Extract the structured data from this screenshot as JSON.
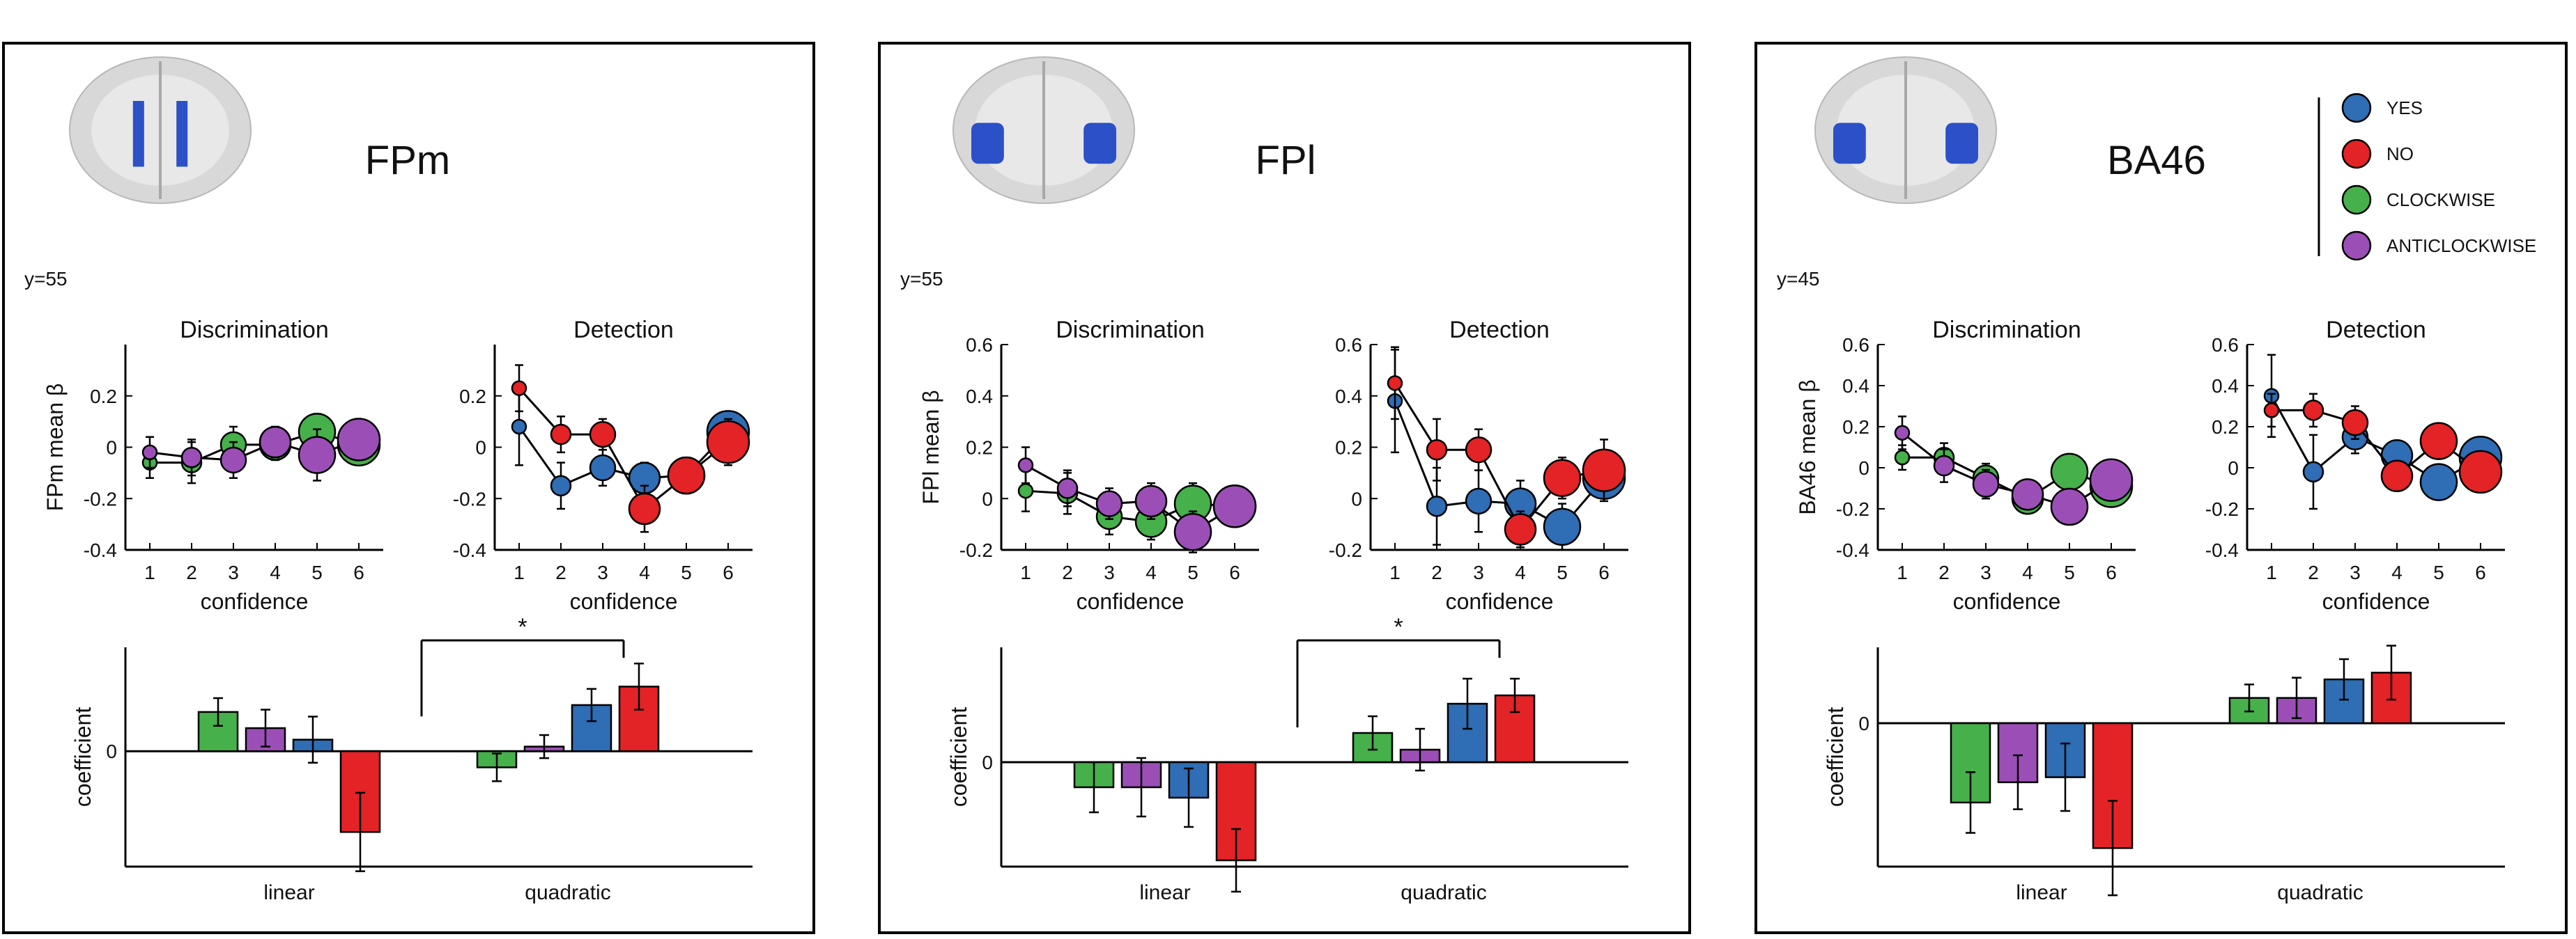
{
  "colors": {
    "yes": "#2f6db4",
    "no": "#e32326",
    "clockwise": "#46b04a",
    "anticlockwise": "#9b4fb6",
    "brain_roi": "#2b50c8"
  },
  "legend": [
    "YES",
    "NO",
    "CLOCKWISE",
    "ANTICLOCKWISE"
  ],
  "chart_data": [
    {
      "type": "line",
      "panel": "FPm",
      "title": "FPm",
      "coord": "y=55",
      "ylabel": "FPm mean β",
      "discrimination": {
        "title": "Discrimination",
        "xlabel": "confidence",
        "ylim": [
          -0.4,
          0.4
        ],
        "yticks": [
          "0.2",
          "0",
          "-0.2",
          "-0.4"
        ],
        "x": [
          1,
          2,
          3,
          4,
          5,
          6
        ],
        "series": [
          {
            "name": "CLOCKWISE",
            "values": [
              -0.06,
              -0.06,
              0.01,
              0.01,
              0.06,
              0.01
            ],
            "err": [
              0.06,
              0.08,
              0.07,
              0.06,
              0.07,
              0.06
            ]
          },
          {
            "name": "ANTICLOCKWISE",
            "values": [
              -0.02,
              -0.04,
              -0.05,
              0.02,
              -0.03,
              0.03
            ],
            "err": [
              0.06,
              0.07,
              0.07,
              0.06,
              0.1,
              0.07
            ]
          }
        ]
      },
      "detection": {
        "title": "Detection",
        "xlabel": "confidence",
        "ylim": [
          -0.4,
          0.4
        ],
        "yticks": [
          "0.2",
          "0",
          "-0.2",
          "-0.4"
        ],
        "x": [
          1,
          2,
          3,
          4,
          5,
          6
        ],
        "series": [
          {
            "name": "YES",
            "values": [
              0.08,
              -0.15,
              -0.08,
              -0.12,
              -0.11,
              0.06
            ],
            "err": [
              0.15,
              0.09,
              0.07,
              0.06,
              0.07,
              0.07
            ]
          },
          {
            "name": "NO",
            "values": [
              0.23,
              0.05,
              0.05,
              -0.24,
              -0.11,
              0.02
            ],
            "err": [
              0.09,
              0.07,
              0.06,
              0.09,
              0.07,
              0.09
            ]
          }
        ]
      },
      "coefficients": {
        "ylabel": "coefficient",
        "zero_tick": "0",
        "categories": [
          "linear",
          "quadratic"
        ],
        "ymin": -0.5,
        "ymax": 0.45,
        "series": [
          {
            "name": "CLOCKWISE",
            "values": [
              0.17,
              -0.07
            ],
            "err": [
              0.06,
              0.06
            ]
          },
          {
            "name": "ANTICLOCKWISE",
            "values": [
              0.1,
              0.02
            ],
            "err": [
              0.08,
              0.05
            ]
          },
          {
            "name": "YES",
            "values": [
              0.05,
              0.2
            ],
            "err": [
              0.1,
              0.07
            ]
          },
          {
            "name": "NO",
            "values": [
              -0.35,
              0.28
            ],
            "err": [
              0.17,
              0.1
            ]
          }
        ],
        "sig_label": "*"
      }
    },
    {
      "type": "line",
      "panel": "FPl",
      "title": "FPl",
      "coord": "y=55",
      "ylabel": "FPl mean β",
      "discrimination": {
        "title": "Discrimination",
        "xlabel": "confidence",
        "ylim": [
          -0.2,
          0.6
        ],
        "yticks": [
          "0.6",
          "0.4",
          "0.2",
          "0",
          "-0.2"
        ],
        "x": [
          1,
          2,
          3,
          4,
          5,
          6
        ],
        "series": [
          {
            "name": "CLOCKWISE",
            "values": [
              0.03,
              0.02,
              -0.07,
              -0.09,
              -0.02,
              -0.03
            ],
            "err": [
              0.08,
              0.08,
              0.07,
              0.07,
              0.08,
              0.07
            ]
          },
          {
            "name": "ANTICLOCKWISE",
            "values": [
              0.13,
              0.04,
              -0.02,
              -0.01,
              -0.13,
              -0.03
            ],
            "err": [
              0.07,
              0.07,
              0.06,
              0.07,
              0.08,
              0.08
            ]
          }
        ]
      },
      "detection": {
        "title": "Detection",
        "xlabel": "confidence",
        "ylim": [
          -0.2,
          0.6
        ],
        "yticks": [
          "0.6",
          "0.4",
          "0.2",
          "0",
          "-0.2"
        ],
        "x": [
          1,
          2,
          3,
          4,
          5,
          6
        ],
        "series": [
          {
            "name": "YES",
            "values": [
              0.38,
              -0.03,
              -0.01,
              -0.02,
              -0.11,
              0.08
            ],
            "err": [
              0.2,
              0.15,
              0.12,
              0.09,
              0.09,
              0.08
            ]
          },
          {
            "name": "NO",
            "values": [
              0.45,
              0.19,
              0.19,
              -0.12,
              0.08,
              0.11
            ],
            "err": [
              0.14,
              0.12,
              0.08,
              0.07,
              0.08,
              0.12
            ]
          }
        ]
      },
      "coefficients": {
        "ylabel": "coefficient",
        "zero_tick": "0",
        "categories": [
          "linear",
          "quadratic"
        ],
        "ymin": -0.5,
        "ymax": 0.55,
        "series": [
          {
            "name": "CLOCKWISE",
            "values": [
              -0.12,
              0.14
            ],
            "err": [
              0.12,
              0.08
            ]
          },
          {
            "name": "ANTICLOCKWISE",
            "values": [
              -0.12,
              0.06
            ],
            "err": [
              0.14,
              0.1
            ]
          },
          {
            "name": "YES",
            "values": [
              -0.17,
              0.28
            ],
            "err": [
              0.14,
              0.12
            ]
          },
          {
            "name": "NO",
            "values": [
              -0.47,
              0.32
            ],
            "err": [
              0.15,
              0.08
            ]
          }
        ],
        "sig_label": "*"
      }
    },
    {
      "type": "line",
      "panel": "BA46",
      "title": "BA46",
      "coord": "y=45",
      "ylabel": "BA46 mean β",
      "discrimination": {
        "title": "Discrimination",
        "xlabel": "confidence",
        "ylim": [
          -0.4,
          0.6
        ],
        "yticks": [
          "0.6",
          "0.4",
          "0.2",
          "0",
          "-0.2",
          "-0.4"
        ],
        "x": [
          1,
          2,
          3,
          4,
          5,
          6
        ],
        "series": [
          {
            "name": "CLOCKWISE",
            "values": [
              0.05,
              0.05,
              -0.05,
              -0.15,
              -0.02,
              -0.09
            ],
            "err": [
              0.06,
              0.07,
              0.07,
              0.06,
              0.08,
              0.06
            ]
          },
          {
            "name": "ANTICLOCKWISE",
            "values": [
              0.17,
              0.01,
              -0.08,
              -0.13,
              -0.19,
              -0.06
            ],
            "err": [
              0.08,
              0.08,
              0.07,
              0.06,
              0.08,
              0.07
            ]
          }
        ]
      },
      "detection": {
        "title": "Detection",
        "xlabel": "confidence",
        "ylim": [
          -0.4,
          0.6
        ],
        "yticks": [
          "0.6",
          "0.4",
          "0.2",
          "0",
          "-0.2",
          "-0.4"
        ],
        "x": [
          1,
          2,
          3,
          4,
          5,
          6
        ],
        "series": [
          {
            "name": "YES",
            "values": [
              0.35,
              -0.02,
              0.15,
              0.06,
              -0.07,
              0.05
            ],
            "err": [
              0.2,
              0.18,
              0.08,
              0.06,
              0.08,
              0.08
            ]
          },
          {
            "name": "NO",
            "values": [
              0.28,
              0.28,
              0.22,
              -0.04,
              0.13,
              -0.02
            ],
            "err": [
              0.08,
              0.08,
              0.08,
              0.06,
              0.07,
              0.06
            ]
          }
        ]
      },
      "coefficients": {
        "ylabel": "coefficient",
        "zero_tick": "0",
        "categories": [
          "linear",
          "quadratic"
        ],
        "ymin": -0.85,
        "ymax": 0.45,
        "series": [
          {
            "name": "CLOCKWISE",
            "values": [
              -0.47,
              0.15
            ],
            "err": [
              0.18,
              0.08
            ]
          },
          {
            "name": "ANTICLOCKWISE",
            "values": [
              -0.35,
              0.15
            ],
            "err": [
              0.16,
              0.12
            ]
          },
          {
            "name": "YES",
            "values": [
              -0.32,
              0.26
            ],
            "err": [
              0.2,
              0.12
            ]
          },
          {
            "name": "NO",
            "values": [
              -0.74,
              0.3
            ],
            "err": [
              0.28,
              0.16
            ]
          }
        ],
        "sig_label": ""
      }
    }
  ]
}
